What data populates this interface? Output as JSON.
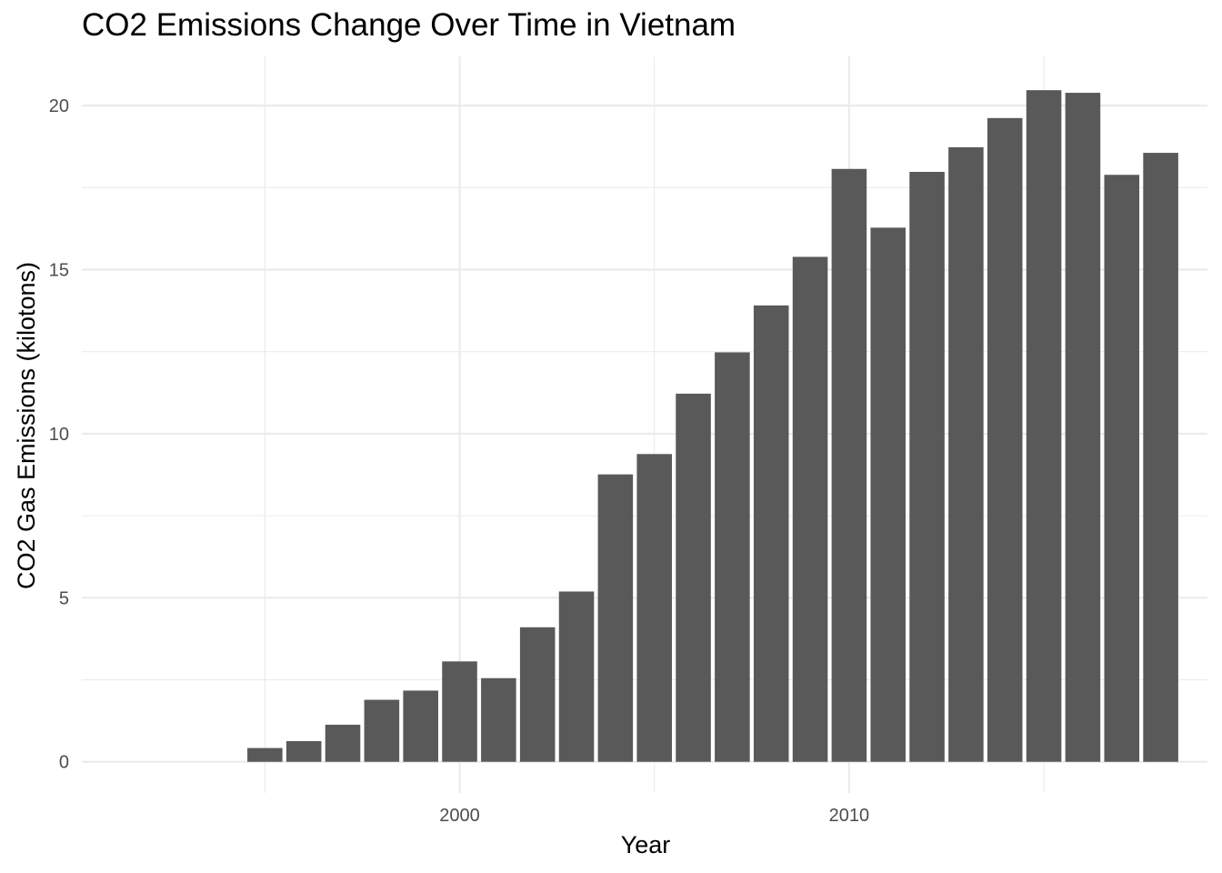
{
  "chart_data": {
    "type": "bar",
    "title": "CO2 Emissions Change Over Time in Vietnam",
    "xlabel": "Year",
    "ylabel": "CO2 Gas Emissions (kilotons)",
    "x": [
      1995,
      1996,
      1997,
      1998,
      1999,
      2000,
      2001,
      2002,
      2003,
      2004,
      2005,
      2006,
      2007,
      2008,
      2009,
      2010,
      2011,
      2012,
      2013,
      2014,
      2015,
      2016,
      2017,
      2018
    ],
    "values": [
      0.42,
      0.63,
      1.13,
      1.89,
      2.17,
      3.06,
      2.55,
      4.1,
      5.19,
      8.76,
      9.38,
      11.22,
      12.48,
      13.91,
      15.39,
      18.07,
      16.28,
      17.98,
      18.73,
      19.62,
      20.47,
      20.39,
      17.89,
      18.56
    ],
    "xlim": [
      1990.3,
      2019.2
    ],
    "ylim": [
      -0.95,
      21.5
    ],
    "x_ticks": [
      2000,
      2010
    ],
    "y_ticks": [
      0,
      5,
      10,
      15,
      20
    ],
    "grid": true,
    "bar_color": "#595959",
    "grid_color": "#ebebeb"
  }
}
